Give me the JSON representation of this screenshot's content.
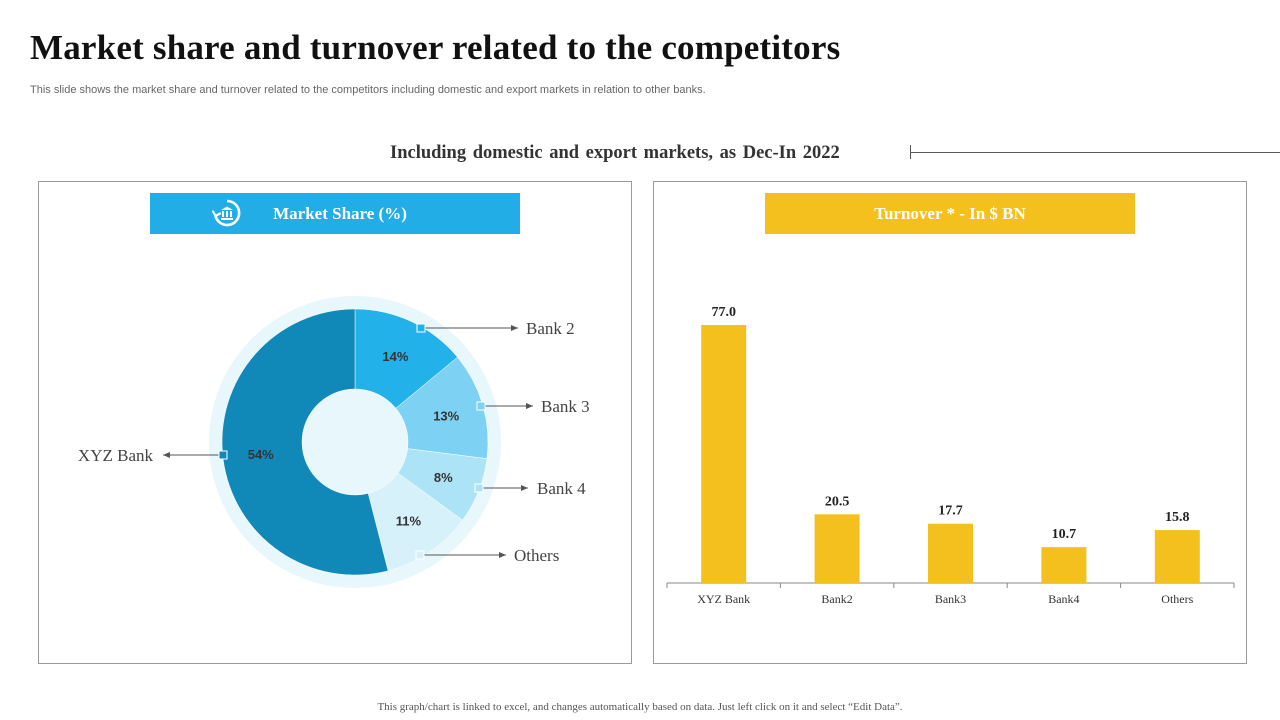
{
  "slide": {
    "title": "Market share and turnover related to the competitors",
    "subtitle": "This slide shows the market share and turnover related to the competitors including domestic and export markets in relation to other banks.",
    "section_heading": "Including  domestic  and  export  markets,  as Dec-In 2022",
    "footer": "This graph/chart is linked to excel,  and changes  automatically based on data. Just left click on it and select  “Edit Data”."
  },
  "market_share": {
    "banner": "Market Share (%)",
    "icon": "bank-cycle-icon"
  },
  "turnover": {
    "banner": "Turnover * - In $ BN"
  },
  "colors": {
    "blue_banner": "#22ade6",
    "yellow": "#f4c01e",
    "xyz": "#1189b8",
    "bank2": "#22b1e8",
    "bank3": "#7dd1f2",
    "bank4": "#ade3f7",
    "others": "#d7f1fb",
    "halo": "#e8f7fc"
  },
  "chart_data": [
    {
      "type": "pie",
      "title": "Market Share (%)",
      "categories": [
        "XYZ Bank",
        "Bank 2",
        "Bank 3",
        "Bank 4",
        "Others"
      ],
      "values": [
        54,
        14,
        13,
        8,
        11
      ],
      "value_labels": [
        "54%",
        "14%",
        "13%",
        "8%",
        "11%"
      ]
    },
    {
      "type": "bar",
      "title": "Turnover * - In $ BN",
      "categories": [
        "XYZ Bank",
        "Bank2",
        "Bank3",
        "Bank4",
        "Others"
      ],
      "values": [
        77.0,
        20.5,
        17.7,
        10.7,
        15.8
      ],
      "value_labels": [
        "77.0",
        "20.5",
        "17.7",
        "10.7",
        "15.8"
      ],
      "ylim": [
        0,
        80
      ]
    }
  ]
}
